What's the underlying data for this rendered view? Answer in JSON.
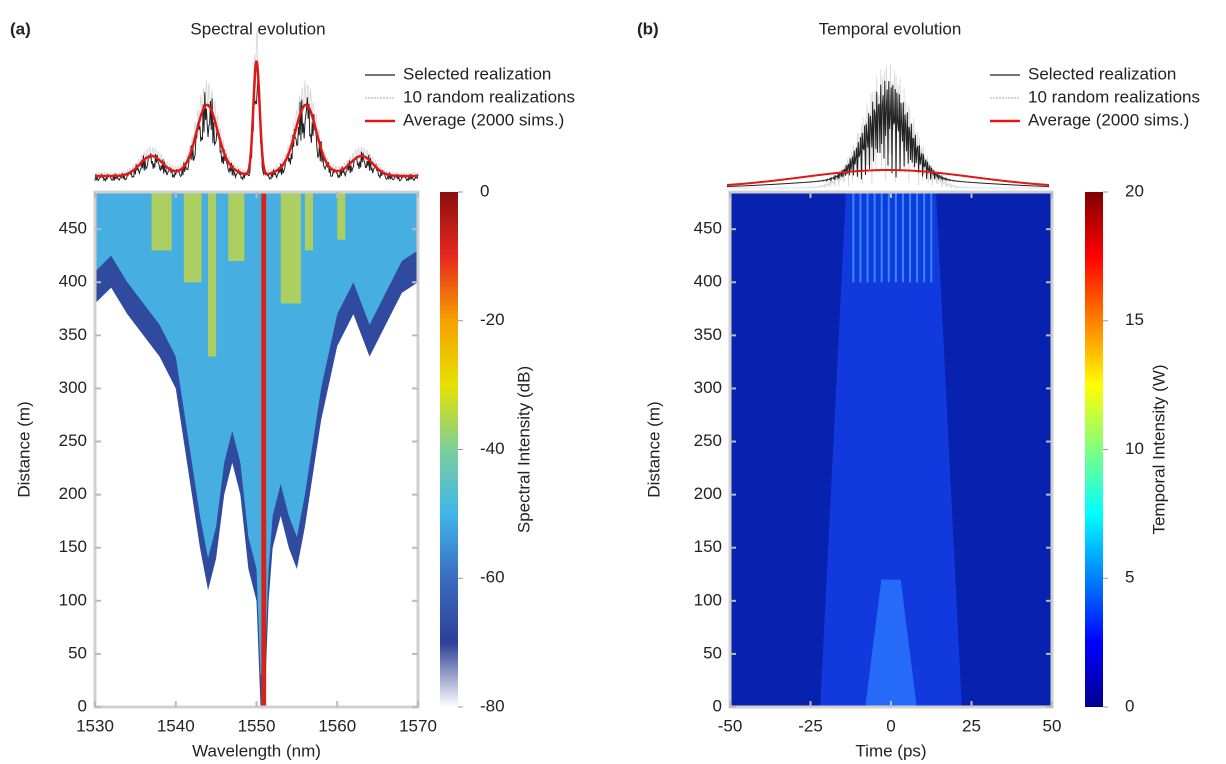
{
  "chart_data": [
    {
      "type": "heatmap",
      "panel_label": "(a)",
      "title": "Spectral evolution",
      "xlabel": "Wavelength (nm)",
      "ylabel": "Distance (m)",
      "xlim": [
        1530,
        1570
      ],
      "xticks": [
        1530,
        1540,
        1550,
        1560,
        1570
      ],
      "ylim": [
        0,
        485
      ],
      "yticks": [
        0,
        50,
        100,
        150,
        200,
        250,
        300,
        350,
        400,
        450
      ],
      "colorbar": {
        "label": "Spectral Intensity (dB)",
        "lim": [
          -80,
          0
        ],
        "ticks": [
          0,
          -20,
          -40,
          -60,
          -80
        ],
        "colormap": [
          "#ffffff",
          "#2d3f96",
          "#3b6cc0",
          "#3fb6e8",
          "#7ccf9a",
          "#e6e200",
          "#f7a000",
          "#e8281e",
          "#8b0f0f"
        ]
      },
      "legend": [
        {
          "name": "Selected realization",
          "color": "#222222"
        },
        {
          "name": "10 random realizations",
          "color": "#bbbbbb"
        },
        {
          "name": "Average (2000 sims.)",
          "color": "#e01818"
        }
      ]
    },
    {
      "type": "heatmap",
      "panel_label": "(b)",
      "title": "Temporal evolution",
      "xlabel": "Time (ps)",
      "ylabel": "Distance (m)",
      "xlim": [
        -50,
        50
      ],
      "xticks": [
        -50,
        -25,
        0,
        25,
        50
      ],
      "ylim": [
        0,
        485
      ],
      "yticks": [
        0,
        50,
        100,
        150,
        200,
        250,
        300,
        350,
        400,
        450
      ],
      "colorbar": {
        "label": "Temporal Intensity (W)",
        "lim": [
          0,
          20
        ],
        "ticks": [
          0,
          5,
          10,
          15,
          20
        ],
        "colormap": [
          "#00008f",
          "#0000ff",
          "#0080ff",
          "#00ffff",
          "#80ff80",
          "#ffff00",
          "#ff8000",
          "#ff0000",
          "#800000"
        ]
      },
      "legend": [
        {
          "name": "Selected realization",
          "color": "#222222"
        },
        {
          "name": "10 random realizations",
          "color": "#bbbbbb"
        },
        {
          "name": "Average (2000 sims.)",
          "color": "#e01818"
        }
      ]
    }
  ]
}
